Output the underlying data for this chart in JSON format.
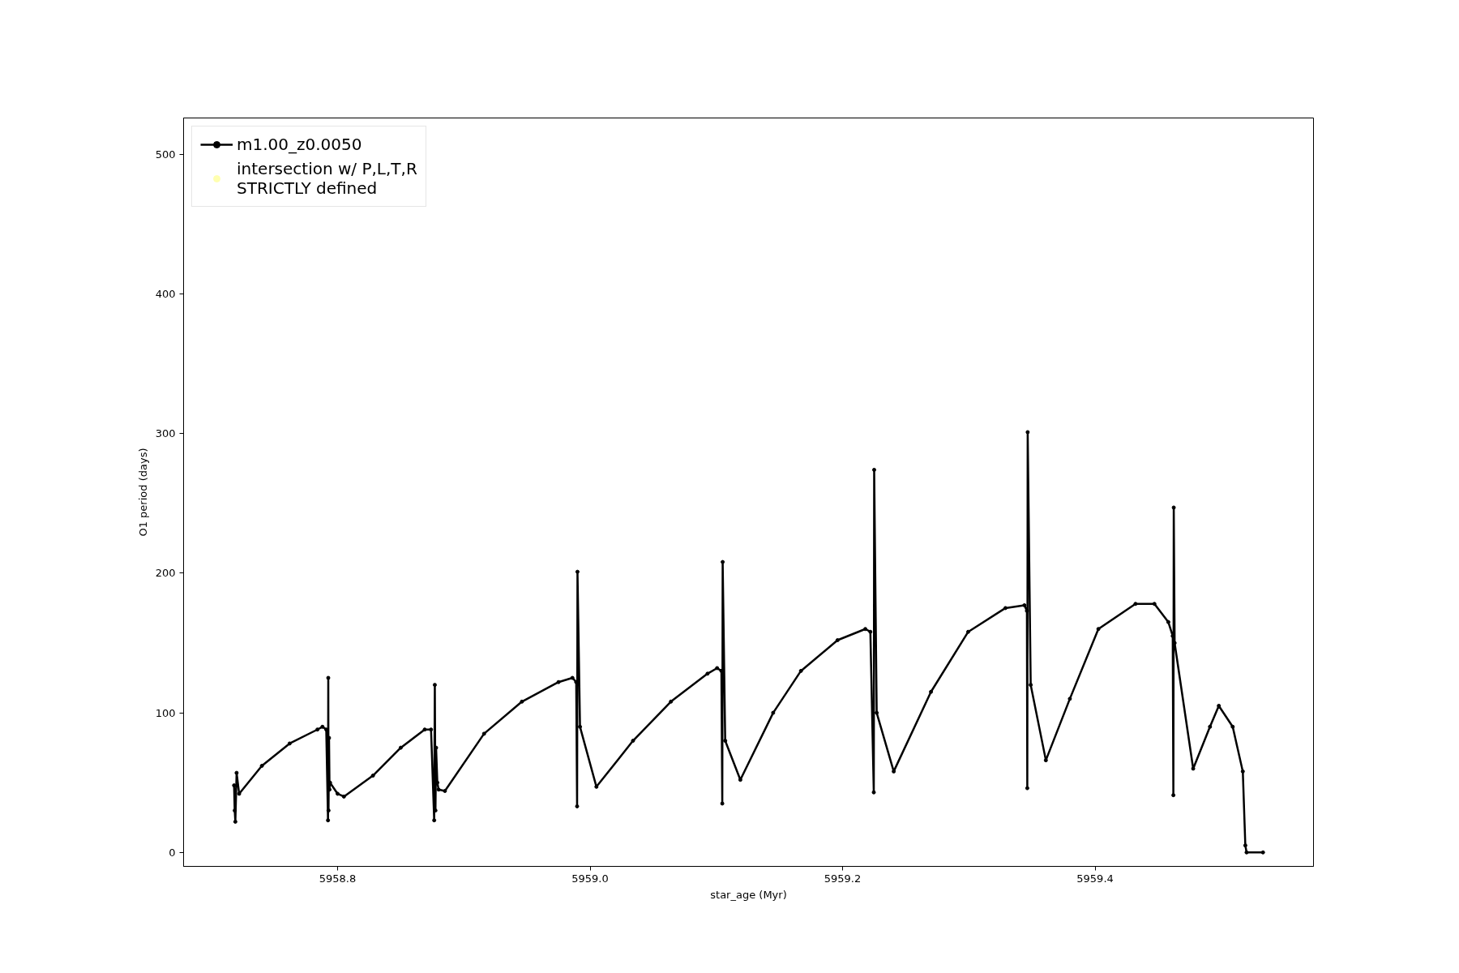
{
  "chart_data": {
    "type": "line",
    "xlabel": "star_age (Myr)",
    "ylabel": "O1 period (days)",
    "xlim": [
      5958.678,
      5959.573
    ],
    "xticks": [
      {
        "value": 5958.8,
        "label": "5958.8"
      },
      {
        "value": 5959.0,
        "label": "5959.0"
      },
      {
        "value": 5959.2,
        "label": "5959.2"
      },
      {
        "value": 5959.4,
        "label": "5959.4"
      }
    ],
    "ylim": [
      -10,
      526
    ],
    "yticks": [
      0,
      100,
      200,
      300,
      400,
      500
    ],
    "grid": false,
    "legend": "top left",
    "marker": "circle",
    "line_style": "solid",
    "series": [
      {
        "name": "m1.00_z0.0050",
        "color": "#000000",
        "x": [
          5958.718,
          5958.7185,
          5958.719,
          5958.72,
          5958.722,
          5958.74,
          5958.762,
          5958.784,
          5958.788,
          5958.791,
          5958.7924,
          5958.7926,
          5958.7928,
          5958.7932,
          5958.7936,
          5958.794,
          5958.8,
          5958.805,
          5958.828,
          5958.85,
          5958.869,
          5958.874,
          5958.8765,
          5958.877,
          5958.8775,
          5958.878,
          5958.879,
          5958.88,
          5958.885,
          5958.916,
          5958.946,
          5958.975,
          5958.986,
          5958.989,
          5958.9897,
          5958.99,
          5958.992,
          5959.005,
          5959.034,
          5959.064,
          5959.093,
          5959.1006,
          5959.104,
          5959.1047,
          5959.105,
          5959.107,
          5959.119,
          5959.145,
          5959.167,
          5959.196,
          5959.218,
          5959.222,
          5959.2247,
          5959.225,
          5959.227,
          5959.2405,
          5959.27,
          5959.2995,
          5959.329,
          5959.344,
          5959.346,
          5959.3463,
          5959.3466,
          5959.349,
          5959.361,
          5959.38,
          5959.4026,
          5959.432,
          5959.447,
          5959.458,
          5959.4615,
          5959.462,
          5959.4623,
          5959.463,
          5959.4777,
          5959.491,
          5959.498,
          5959.509,
          5959.517,
          5959.519,
          5959.52,
          5959.533
        ],
        "values": [
          48,
          30,
          22,
          57,
          42,
          62,
          78,
          88,
          90,
          88,
          23,
          125,
          30,
          82,
          45,
          50,
          42,
          40,
          55,
          75,
          88,
          88,
          23,
          120,
          30,
          75,
          50,
          45,
          44,
          85,
          108,
          122,
          125,
          122,
          33,
          201,
          90,
          47,
          80,
          108,
          128,
          132,
          130,
          35,
          208,
          80,
          52,
          100,
          130,
          152,
          160,
          158,
          43,
          274,
          100,
          58,
          115,
          158,
          175,
          177,
          173,
          46,
          301,
          120,
          66,
          110,
          160,
          178,
          178,
          165,
          155,
          41,
          247,
          150,
          60,
          90,
          105,
          90,
          58,
          5,
          0,
          0
        ]
      },
      {
        "type": "scatter",
        "name": "intersection w/ P,L,T,R\nSTRICTLY defined",
        "color": "#ffffb0"
      }
    ]
  }
}
